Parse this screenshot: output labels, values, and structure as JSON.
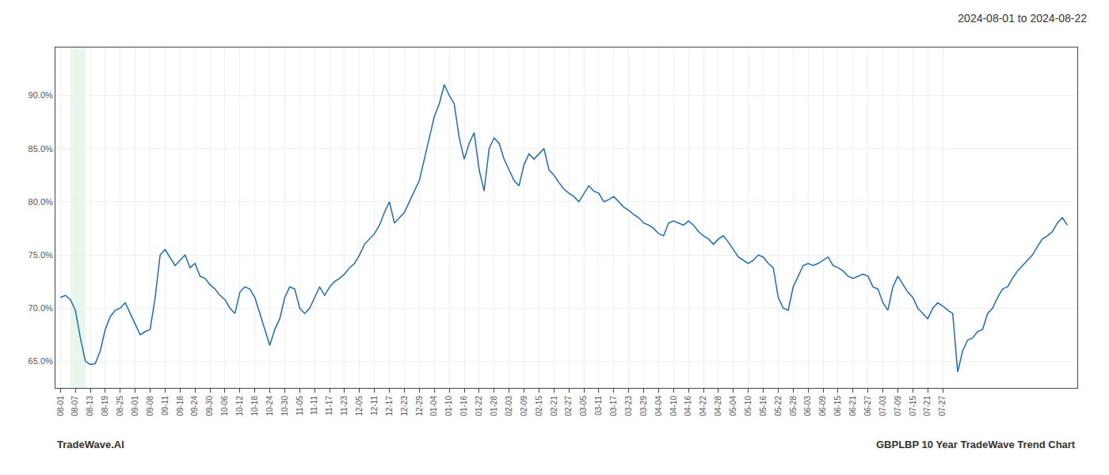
{
  "chart_data": {
    "type": "line",
    "title": "2024-08-01 to 2024-08-22",
    "annotations": [
      {
        "text": "TradeWave.AI"
      },
      {
        "text": "GBPLBP 10 Year TradeWave Trend Chart"
      }
    ],
    "color": "#1f6cb0",
    "grid": true,
    "highlight": {
      "start": 2,
      "end": 5,
      "color": "#d4edda"
    },
    "ylim": [
      0.625,
      0.945
    ],
    "yticks": [
      {
        "value": 0.65,
        "label": "65.0%"
      },
      {
        "value": 0.7,
        "label": "70.0%"
      },
      {
        "value": 0.75,
        "label": "75.0%"
      },
      {
        "value": 0.8,
        "label": "80.0%"
      },
      {
        "value": 0.85,
        "label": "85.0%"
      },
      {
        "value": 0.9,
        "label": "90.0%"
      }
    ],
    "categories": [
      "08-01",
      null,
      null,
      "08-07",
      null,
      null,
      "08-13",
      null,
      null,
      "08-19",
      null,
      null,
      "08-25",
      null,
      null,
      "09-01",
      null,
      null,
      "09-08",
      null,
      null,
      "09-11",
      null,
      null,
      "09-18",
      null,
      null,
      "09-24",
      null,
      null,
      "09-30",
      null,
      null,
      "10-06",
      null,
      null,
      "10-12",
      null,
      null,
      "10-18",
      null,
      null,
      "10-24",
      null,
      null,
      "10-30",
      null,
      null,
      "11-05",
      null,
      null,
      "11-11",
      null,
      null,
      "11-17",
      null,
      null,
      "11-23",
      null,
      null,
      "12-05",
      null,
      null,
      "12-11",
      null,
      null,
      "12-17",
      null,
      null,
      "12-23",
      null,
      null,
      "12-29",
      null,
      null,
      "01-04",
      null,
      null,
      "01-10",
      null,
      null,
      "01-16",
      null,
      null,
      "01-22",
      null,
      null,
      "01-28",
      null,
      null,
      "02-03",
      null,
      null,
      "02-09",
      null,
      null,
      "02-15",
      null,
      null,
      "02-21",
      null,
      null,
      "02-27",
      null,
      null,
      "03-05",
      null,
      null,
      "03-11",
      null,
      null,
      "03-17",
      null,
      null,
      "03-23",
      null,
      null,
      "03-29",
      null,
      null,
      "04-04",
      null,
      null,
      "04-10",
      null,
      null,
      "04-16",
      null,
      null,
      "04-22",
      null,
      null,
      "04-28",
      null,
      null,
      "05-04",
      null,
      null,
      "05-10",
      null,
      null,
      "05-16",
      null,
      null,
      "05-22",
      null,
      null,
      "05-28",
      null,
      null,
      "06-03",
      null,
      null,
      "06-09",
      null,
      null,
      "06-15",
      null,
      null,
      "06-21",
      null,
      null,
      "06-27",
      null,
      null,
      "07-03",
      null,
      null,
      "07-09",
      null,
      null,
      "07-15",
      null,
      null,
      "07-21",
      null,
      null,
      "07-27",
      null,
      null,
      null,
      null,
      null,
      null,
      null,
      null,
      null,
      null,
      null,
      null,
      null,
      null,
      null,
      null,
      null,
      null,
      null,
      null,
      null,
      null,
      null,
      null,
      null
    ],
    "values": [
      0.71,
      0.712,
      0.708,
      0.698,
      0.672,
      0.65,
      0.647,
      0.648,
      0.66,
      0.68,
      0.692,
      0.698,
      0.7,
      0.705,
      0.695,
      0.685,
      0.675,
      0.678,
      0.68,
      0.71,
      0.75,
      0.755,
      0.748,
      0.74,
      0.745,
      0.75,
      0.738,
      0.742,
      0.73,
      0.728,
      0.722,
      0.718,
      0.712,
      0.708,
      0.7,
      0.695,
      0.715,
      0.72,
      0.718,
      0.71,
      0.695,
      0.68,
      0.665,
      0.68,
      0.69,
      0.71,
      0.72,
      0.718,
      0.7,
      0.695,
      0.7,
      0.71,
      0.72,
      0.712,
      0.72,
      0.725,
      0.728,
      0.732,
      0.738,
      0.742,
      0.75,
      0.76,
      0.765,
      0.77,
      0.778,
      0.79,
      0.8,
      0.78,
      0.785,
      0.79,
      0.8,
      0.81,
      0.82,
      0.84,
      0.86,
      0.88,
      0.892,
      0.91,
      0.9,
      0.892,
      0.86,
      0.84,
      0.855,
      0.865,
      0.83,
      0.81,
      0.85,
      0.86,
      0.855,
      0.84,
      0.83,
      0.82,
      0.815,
      0.835,
      0.845,
      0.84,
      0.845,
      0.85,
      0.83,
      0.825,
      0.818,
      0.812,
      0.808,
      0.805,
      0.8,
      0.808,
      0.815,
      0.81,
      0.808,
      0.8,
      0.802,
      0.805,
      0.8,
      0.795,
      0.792,
      0.788,
      0.785,
      0.78,
      0.778,
      0.775,
      0.77,
      0.768,
      0.78,
      0.782,
      0.78,
      0.778,
      0.782,
      0.778,
      0.772,
      0.768,
      0.765,
      0.76,
      0.765,
      0.768,
      0.762,
      0.755,
      0.748,
      0.745,
      0.742,
      0.745,
      0.75,
      0.748,
      0.742,
      0.738,
      0.71,
      0.7,
      0.698,
      0.72,
      0.73,
      0.74,
      0.742,
      0.74,
      0.742,
      0.745,
      0.748,
      0.74,
      0.738,
      0.735,
      0.73,
      0.728,
      0.73,
      0.732,
      0.73,
      0.72,
      0.718,
      0.705,
      0.698,
      0.72,
      0.73,
      0.722,
      0.715,
      0.71,
      0.7,
      0.695,
      0.69,
      0.7,
      0.705,
      0.702,
      0.698,
      0.695,
      0.64,
      0.66,
      0.67,
      0.672,
      0.678,
      0.68,
      0.695,
      0.7,
      0.71,
      0.718,
      0.72,
      0.728,
      0.735,
      0.74,
      0.745,
      0.75,
      0.758,
      0.765,
      0.768,
      0.772,
      0.78,
      0.785,
      0.778
    ]
  }
}
